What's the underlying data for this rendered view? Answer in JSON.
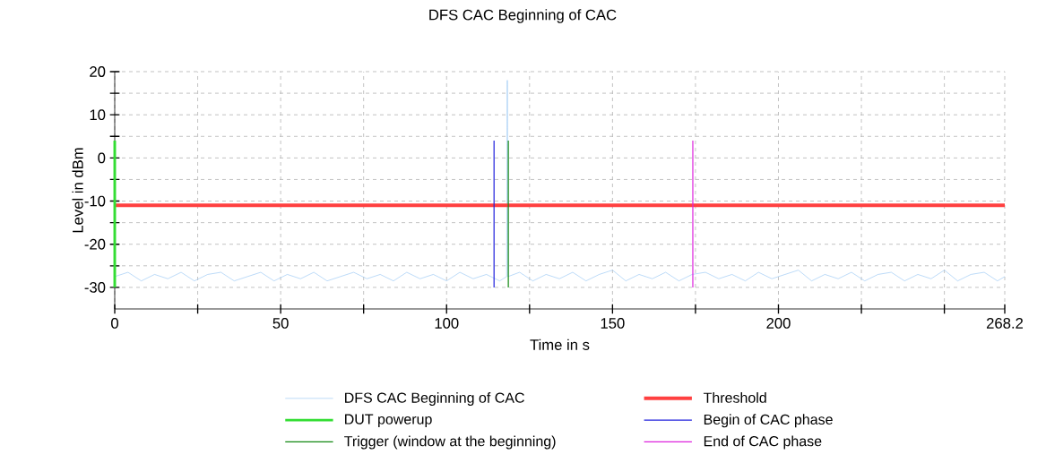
{
  "chart_data": {
    "type": "line",
    "title": "DFS CAC Beginning of CAC",
    "xlabel": "Time in s",
    "ylabel": "Level in dBm",
    "xlim": [
      0,
      268.2
    ],
    "ylim": [
      -35,
      20
    ],
    "xticks": [
      0,
      {
        "value": 25,
        "label": null
      },
      50,
      {
        "value": 75,
        "label": null
      },
      100,
      {
        "value": 125,
        "label": null
      },
      150,
      {
        "value": 175,
        "label": null
      },
      200,
      {
        "value": 225,
        "label": null
      },
      {
        "value": 250,
        "label": null
      },
      268.2
    ],
    "yticks": [
      -30,
      {
        "value": -25,
        "label": null
      },
      -20,
      {
        "value": -15,
        "label": null
      },
      -10,
      {
        "value": -5,
        "label": null
      },
      0,
      {
        "value": 5,
        "label": null
      },
      10,
      {
        "value": 15,
        "label": null
      },
      20
    ],
    "grid": true,
    "legend": "bottom",
    "line_style": "solid",
    "marker": "none",
    "series": [
      {
        "name": "DFS CAC Beginning of CAC",
        "color": "#9cc8f5",
        "x": [
          0,
          4,
          8,
          12,
          16,
          20,
          24,
          28,
          32,
          36,
          40,
          44,
          48,
          52,
          56,
          60,
          64,
          68,
          72,
          76,
          80,
          84,
          88,
          92,
          96,
          100,
          104,
          108,
          112,
          116,
          118.1,
          118.3,
          118.5,
          122,
          126,
          130,
          134,
          138,
          142,
          146,
          150,
          154,
          158,
          162,
          166,
          170,
          174,
          178,
          182,
          186,
          190,
          194,
          198,
          202,
          206,
          210,
          214,
          218,
          222,
          226,
          230,
          234,
          238,
          242,
          246,
          250,
          254,
          258,
          262,
          266,
          268.2
        ],
        "values": [
          -27.5,
          -26.5,
          -28.5,
          -27,
          -28,
          -26.5,
          -28.5,
          -27,
          -26.5,
          -28.5,
          -27.5,
          -26.5,
          -28.5,
          -27,
          -28,
          -26.5,
          -28.5,
          -27.5,
          -26.5,
          -28,
          -27,
          -28.5,
          -26.5,
          -28,
          -27,
          -28.5,
          -26.5,
          -28,
          -27,
          -28.5,
          -27.5,
          18,
          -27.5,
          -26.5,
          -28.5,
          -27,
          -28,
          -26.5,
          -28.5,
          -27,
          -26,
          -28.5,
          -27,
          -28,
          -26.5,
          -28.5,
          -27,
          -26.5,
          -28,
          -27,
          -28.5,
          -26.5,
          -28,
          -27,
          -26,
          -28.5,
          -27,
          -28,
          -26.5,
          -28.5,
          -27,
          -26.5,
          -28.5,
          -27,
          -28,
          -26,
          -28.5,
          -27,
          -26.5,
          -28.5,
          -27.5
        ]
      },
      {
        "name": "Threshold",
        "color": "#ff4040",
        "x": [
          0,
          268.2
        ],
        "values": [
          -11,
          -11
        ]
      },
      {
        "name": "DUT powerup",
        "color": "#33dd33",
        "x": [
          0,
          0
        ],
        "values": [
          -30,
          4
        ]
      },
      {
        "name": "Begin of CAC phase",
        "color": "#2020dd",
        "x": [
          114.3,
          114.3
        ],
        "values": [
          -30,
          4
        ]
      },
      {
        "name": "Trigger (window at the beginning)",
        "color": "#118811",
        "x": [
          118.6,
          118.6
        ],
        "values": [
          -30,
          4
        ]
      },
      {
        "name": "End of CAC phase",
        "color": "#dd22dd",
        "x": [
          174.2,
          174.2
        ],
        "values": [
          -30,
          4
        ]
      }
    ]
  }
}
